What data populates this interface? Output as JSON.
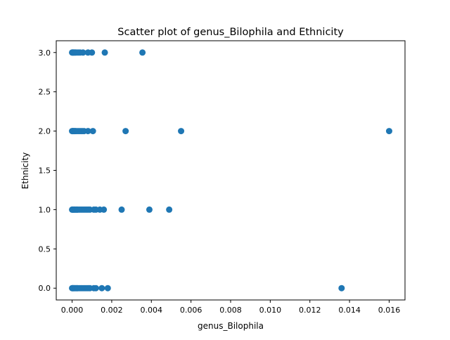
{
  "chart_data": {
    "type": "scatter",
    "title": "Scatter plot of genus_Bilophila and Ethnicity",
    "xlabel": "genus_Bilophila",
    "ylabel": "Ethnicity",
    "xlim": [
      -0.0008,
      0.0168
    ],
    "ylim": [
      -0.15,
      3.15
    ],
    "x_ticks": [
      0.0,
      0.002,
      0.004,
      0.006,
      0.008,
      0.01,
      0.012,
      0.014,
      0.016
    ],
    "x_tick_labels": [
      "0.000",
      "0.002",
      "0.004",
      "0.006",
      "0.008",
      "0.010",
      "0.012",
      "0.014",
      "0.016"
    ],
    "y_ticks": [
      0.0,
      0.5,
      1.0,
      1.5,
      2.0,
      2.5,
      3.0
    ],
    "y_tick_labels": [
      "0.0",
      "0.5",
      "1.0",
      "1.5",
      "2.0",
      "2.5",
      "3.0"
    ],
    "grid": false,
    "marker_color": "#1f77b4",
    "points": [
      {
        "x": 0.0,
        "y": 3
      },
      {
        "x": 3e-05,
        "y": 3
      },
      {
        "x": 6e-05,
        "y": 3
      },
      {
        "x": 0.0001,
        "y": 3
      },
      {
        "x": 0.00015,
        "y": 3
      },
      {
        "x": 0.0002,
        "y": 3
      },
      {
        "x": 0.0003,
        "y": 3
      },
      {
        "x": 0.0004,
        "y": 3
      },
      {
        "x": 0.00055,
        "y": 3
      },
      {
        "x": 0.0008,
        "y": 3
      },
      {
        "x": 0.001,
        "y": 3
      },
      {
        "x": 0.00165,
        "y": 3
      },
      {
        "x": 0.00355,
        "y": 3
      },
      {
        "x": 0.0,
        "y": 2
      },
      {
        "x": 3e-05,
        "y": 2
      },
      {
        "x": 6e-05,
        "y": 2
      },
      {
        "x": 0.0001,
        "y": 2
      },
      {
        "x": 0.00015,
        "y": 2
      },
      {
        "x": 0.0002,
        "y": 2
      },
      {
        "x": 0.0003,
        "y": 2
      },
      {
        "x": 0.0004,
        "y": 2
      },
      {
        "x": 0.0005,
        "y": 2
      },
      {
        "x": 0.0006,
        "y": 2
      },
      {
        "x": 0.0008,
        "y": 2
      },
      {
        "x": 0.00105,
        "y": 2
      },
      {
        "x": 0.0027,
        "y": 2
      },
      {
        "x": 0.0055,
        "y": 2
      },
      {
        "x": 0.016,
        "y": 2
      },
      {
        "x": 0.0,
        "y": 1
      },
      {
        "x": 3e-05,
        "y": 1
      },
      {
        "x": 6e-05,
        "y": 1
      },
      {
        "x": 0.0001,
        "y": 1
      },
      {
        "x": 0.00015,
        "y": 1
      },
      {
        "x": 0.0002,
        "y": 1
      },
      {
        "x": 0.00025,
        "y": 1
      },
      {
        "x": 0.0003,
        "y": 1
      },
      {
        "x": 0.0004,
        "y": 1
      },
      {
        "x": 0.0005,
        "y": 1
      },
      {
        "x": 0.0006,
        "y": 1
      },
      {
        "x": 0.0007,
        "y": 1
      },
      {
        "x": 0.0008,
        "y": 1
      },
      {
        "x": 0.0009,
        "y": 1
      },
      {
        "x": 0.0011,
        "y": 1
      },
      {
        "x": 0.0012,
        "y": 1
      },
      {
        "x": 0.0014,
        "y": 1
      },
      {
        "x": 0.0016,
        "y": 1
      },
      {
        "x": 0.0025,
        "y": 1
      },
      {
        "x": 0.0039,
        "y": 1
      },
      {
        "x": 0.0049,
        "y": 1
      },
      {
        "x": 0.0,
        "y": 0
      },
      {
        "x": 3e-05,
        "y": 0
      },
      {
        "x": 6e-05,
        "y": 0
      },
      {
        "x": 0.0001,
        "y": 0
      },
      {
        "x": 0.00015,
        "y": 0
      },
      {
        "x": 0.0002,
        "y": 0
      },
      {
        "x": 0.00025,
        "y": 0
      },
      {
        "x": 0.0003,
        "y": 0
      },
      {
        "x": 0.0004,
        "y": 0
      },
      {
        "x": 0.0005,
        "y": 0
      },
      {
        "x": 0.0006,
        "y": 0
      },
      {
        "x": 0.0007,
        "y": 0
      },
      {
        "x": 0.0008,
        "y": 0
      },
      {
        "x": 0.0009,
        "y": 0
      },
      {
        "x": 0.0011,
        "y": 0
      },
      {
        "x": 0.0012,
        "y": 0
      },
      {
        "x": 0.0015,
        "y": 0
      },
      {
        "x": 0.0018,
        "y": 0
      },
      {
        "x": 0.0136,
        "y": 0
      }
    ]
  }
}
